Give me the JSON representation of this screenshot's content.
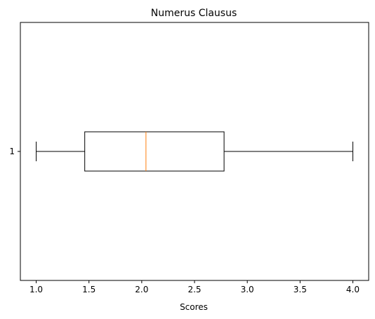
{
  "chart_data": {
    "type": "boxplot",
    "orientation": "horizontal",
    "title": "Numerus Clausus",
    "xlabel": "Scores",
    "ylabel": "",
    "xlim": [
      0.85,
      4.15
    ],
    "x_ticks": [
      1.0,
      1.5,
      2.0,
      2.5,
      3.0,
      3.5,
      4.0
    ],
    "x_tick_labels": [
      "1.0",
      "1.5",
      "2.0",
      "2.5",
      "3.0",
      "3.5",
      "4.0"
    ],
    "y_ticks": [
      1
    ],
    "y_tick_labels": [
      "1"
    ],
    "grid": false,
    "boxes": [
      {
        "position": 1,
        "whisker_low": 1.0,
        "q1": 1.46,
        "median": 2.04,
        "q3": 2.78,
        "whisker_high": 4.0
      }
    ],
    "colors": {
      "box": "#000000",
      "median": "#ff7f0e"
    }
  }
}
